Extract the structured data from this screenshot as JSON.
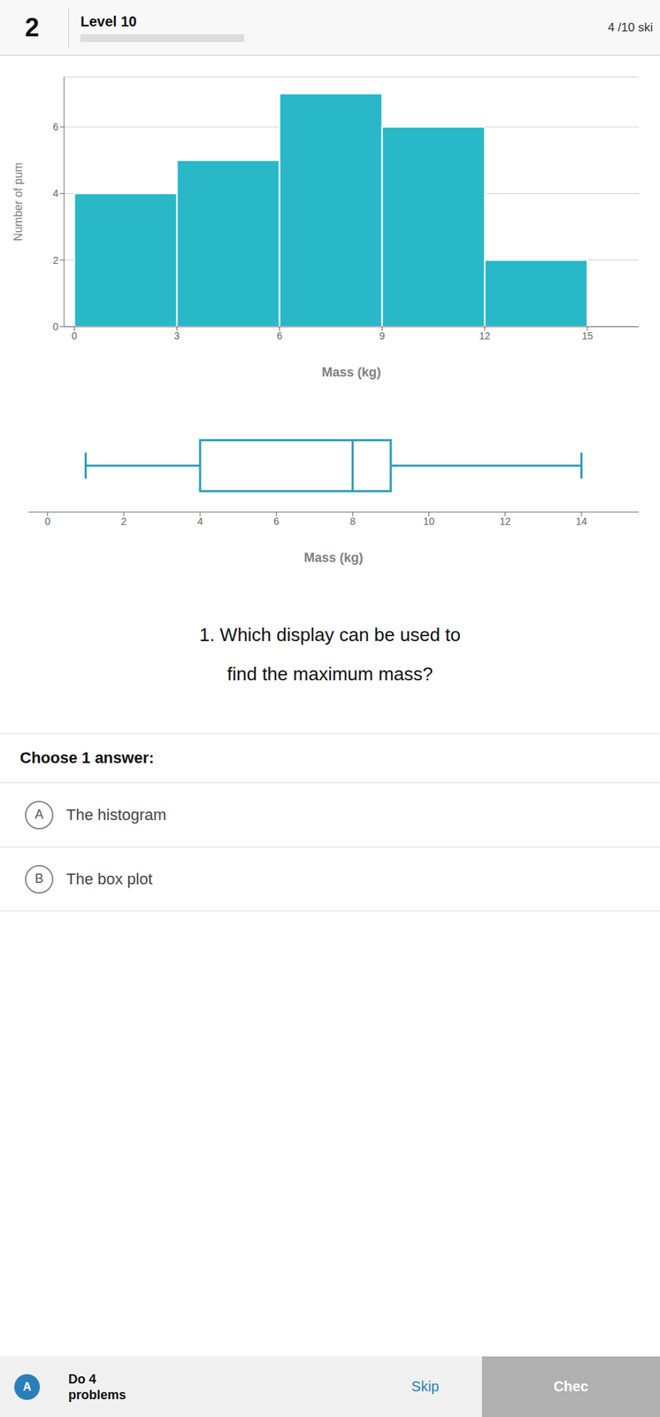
{
  "chart_data": [
    {
      "type": "histogram",
      "annotations": [
        "2",
        "Level 10",
        "4 /10 ski"
      ],
      "xlabel": "Mass (kg)",
      "ylabel": "Number of pum",
      "bins": [
        0,
        3,
        6,
        9,
        12,
        15
      ],
      "values": [
        4,
        5,
        7,
        6,
        2
      ],
      "color": "#29b8c8",
      "xlim": [
        -0.3,
        16.5
      ],
      "ylim": [
        0,
        7.5
      ],
      "xticks": [
        0,
        3,
        6,
        9,
        12,
        15
      ],
      "yticks": [
        0,
        2,
        4,
        6
      ],
      "grid": true
    },
    {
      "type": "box",
      "annotations": [
        "1. Which display can be used to",
        "find the maximum mass?",
        "Choose 1 answer:",
        "A",
        "The histogram",
        "B",
        "The box plot",
        "A",
        "Do 4",
        "problems",
        "Skip",
        "Chec"
      ],
      "xlabel": "Mass (kg)",
      "min": 1,
      "q1": 4,
      "median": 8,
      "q3": 9,
      "max": 14,
      "color": "#2a9db5",
      "xlim": [
        -0.5,
        15.5
      ],
      "xticks": [
        0,
        2,
        4,
        6,
        8,
        10,
        12,
        14
      ]
    }
  ]
}
